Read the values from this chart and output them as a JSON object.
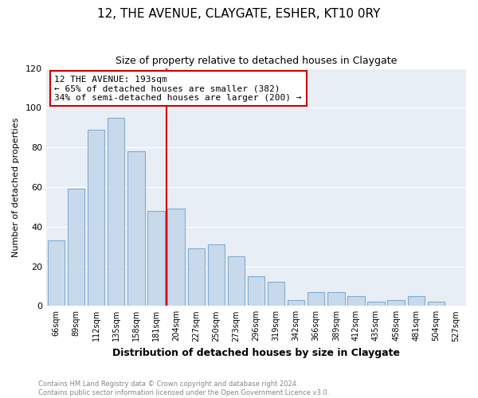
{
  "title": "12, THE AVENUE, CLAYGATE, ESHER, KT10 0RY",
  "subtitle": "Size of property relative to detached houses in Claygate",
  "xlabel": "Distribution of detached houses by size in Claygate",
  "ylabel": "Number of detached properties",
  "bar_labels": [
    "66sqm",
    "89sqm",
    "112sqm",
    "135sqm",
    "158sqm",
    "181sqm",
    "204sqm",
    "227sqm",
    "250sqm",
    "273sqm",
    "296sqm",
    "319sqm",
    "342sqm",
    "366sqm",
    "389sqm",
    "412sqm",
    "435sqm",
    "458sqm",
    "481sqm",
    "504sqm",
    "527sqm"
  ],
  "bar_values": [
    33,
    59,
    89,
    95,
    78,
    48,
    49,
    29,
    31,
    25,
    15,
    12,
    3,
    7,
    7,
    5,
    2,
    3,
    5,
    2,
    0
  ],
  "bar_color": "#c9d9ec",
  "bar_edge_color": "#7fadd4",
  "vline_x": 5.5,
  "vline_color": "#cc0000",
  "annotation_title": "12 THE AVENUE: 193sqm",
  "annotation_line1": "← 65% of detached houses are smaller (382)",
  "annotation_line2": "34% of semi-detached houses are larger (200) →",
  "annotation_box_facecolor": "#ffffff",
  "annotation_box_edgecolor": "#cc0000",
  "ylim": [
    0,
    120
  ],
  "yticks": [
    0,
    20,
    40,
    60,
    80,
    100,
    120
  ],
  "footer1": "Contains HM Land Registry data © Crown copyright and database right 2024.",
  "footer2": "Contains public sector information licensed under the Open Government Licence v3.0.",
  "fig_bg_color": "#ffffff",
  "plot_bg_color": "#e8eef5",
  "grid_color": "#ffffff",
  "footer_color": "#888888"
}
